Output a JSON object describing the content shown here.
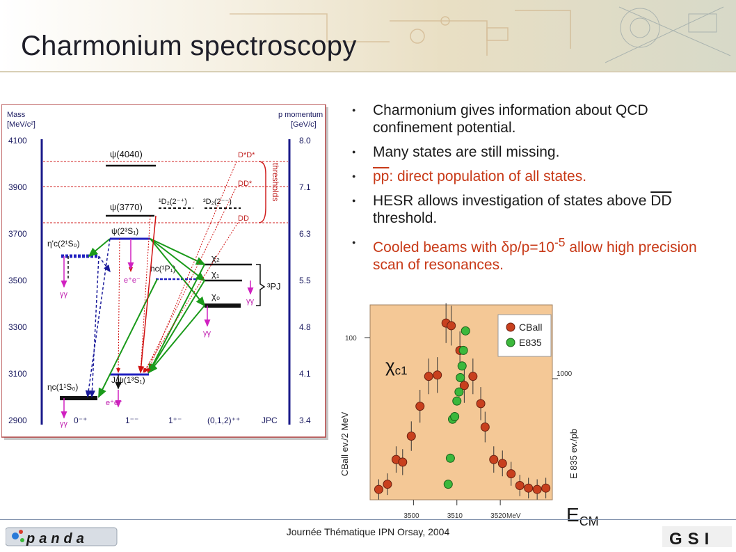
{
  "slide": {
    "title": "Charmonium spectroscopy",
    "footer": "Journée Thématique IPN Orsay, 2004",
    "logo_left_text": "panda",
    "logo_right_text": "GSI"
  },
  "bullets": [
    {
      "text": "Charmonium gives information about QCD confinement potential.",
      "color": "#1a1a1a"
    },
    {
      "text": "Many states are still missing.",
      "color": "#1a1a1a"
    },
    {
      "pre": "pp",
      "text": ": direct population of all states.",
      "color": "#c83a18"
    },
    {
      "a": "HESR allows investigation of states above ",
      "b": "DD",
      "c": " threshold.",
      "color": "#1a1a1a"
    },
    {
      "a": "Cooled beams with ",
      "b": "δp/p=10",
      "sup": "-5",
      "c": " allow high precision scan of resonances.",
      "color": "#c83a18"
    }
  ],
  "level_diagram": {
    "left_axis_title": [
      "Mass",
      "[MeV/c²]"
    ],
    "right_axis_title": [
      "p momentum",
      "[GeV/c]"
    ],
    "left_ticks": [
      "4100",
      "3900",
      "3700",
      "3500",
      "3300",
      "3100",
      "2900"
    ],
    "right_ticks": [
      "8.0",
      "7.1",
      "6.3",
      "5.5",
      "4.8",
      "4.1",
      "3.4"
    ],
    "thresholds_label": "thresholds",
    "threshold_labels": [
      "D*D*",
      "DD*",
      "DD"
    ],
    "states": [
      "ψ(4040)",
      "ψ(3770)",
      "ψ(2³S₁)",
      "η'c(2¹S₀)",
      "hc(¹P₁)",
      "χ₂",
      "χ₁",
      "χ₀",
      "³PJ",
      "¹D₂(2⁻⁺)",
      "³D₂(2⁻⁻)",
      "ηc(1¹S₀)",
      "J/ψ(1³S₁)",
      "e⁺e⁻",
      "γγ"
    ],
    "jpc_labels": [
      "0⁻⁺",
      "1⁻⁻",
      "1⁺⁻",
      "(0,1,2)⁺⁺",
      "JPC"
    ]
  },
  "chart_data": {
    "type": "scatter",
    "title": "",
    "annotation": "χc1",
    "xlabel": "ECM",
    "x_unit": "MeV",
    "x_ticks": [
      3500,
      3510,
      3520
    ],
    "ylabel_left": "CBall ev./2 MeV",
    "ylabel_right": "E 835 ev./pb",
    "left_tick": 100,
    "right_tick": 1000,
    "legend": [
      "CBall",
      "E835"
    ],
    "legend_position": "top-right",
    "series": [
      {
        "name": "CBall",
        "color": "#c8401e",
        "x": [
          3492,
          3494,
          3496,
          3497.5,
          3499.5,
          3501.5,
          3503.5,
          3505.5,
          3507.5,
          3508.7,
          3510.7,
          3511.7,
          3513.7,
          3515.5,
          3516.5,
          3518.5,
          3520.5,
          3522.5,
          3524.5,
          3526.5,
          3528.5,
          3530.5
        ],
        "y": [
          8,
          12,
          31,
          29,
          49,
          72,
          95,
          96,
          136,
          134,
          115,
          88,
          95,
          74,
          56,
          31,
          28,
          20,
          11,
          9,
          8,
          9
        ]
      },
      {
        "name": "E835",
        "color": "#3cb83c",
        "x": [
          3508,
          3508.5,
          3509,
          3509.5,
          3510,
          3510.5,
          3510.8,
          3511.2,
          3511.5,
          3512
        ],
        "y": [
          120,
          320,
          620,
          640,
          760,
          830,
          940,
          1030,
          1150,
          1300
        ]
      }
    ]
  }
}
